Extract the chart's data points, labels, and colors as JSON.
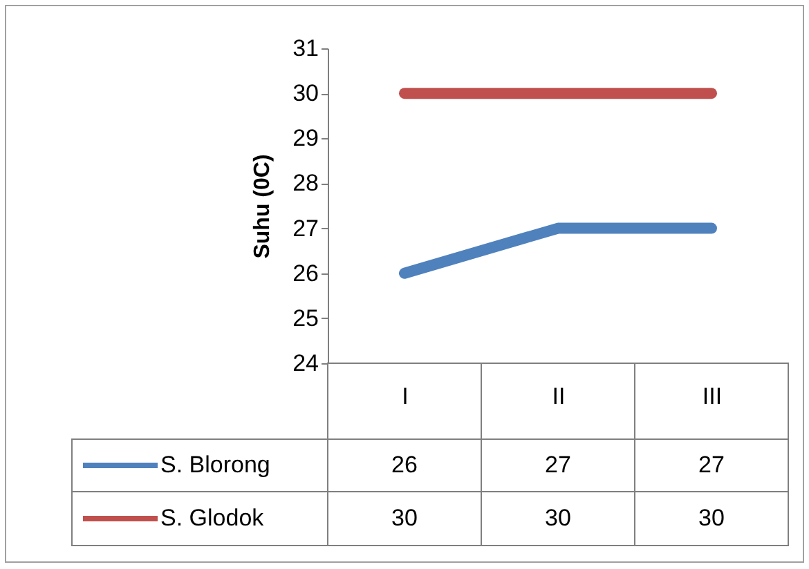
{
  "chart_data": {
    "type": "line",
    "ylabel": "Suhu (0C)",
    "categories": [
      "I",
      "II",
      "III"
    ],
    "series": [
      {
        "name": "S. Blorong",
        "color": "#4f81bd",
        "values": [
          26,
          27,
          27
        ]
      },
      {
        "name": "S. Glodok",
        "color": "#c0504d",
        "values": [
          30,
          30,
          30
        ]
      }
    ],
    "ylim": [
      24,
      31
    ],
    "yticks": [
      24,
      25,
      26,
      27,
      28,
      29,
      30,
      31
    ],
    "grid": false,
    "legend": "bottom",
    "data_labels": true,
    "marker": "none",
    "line_style": "solid"
  }
}
